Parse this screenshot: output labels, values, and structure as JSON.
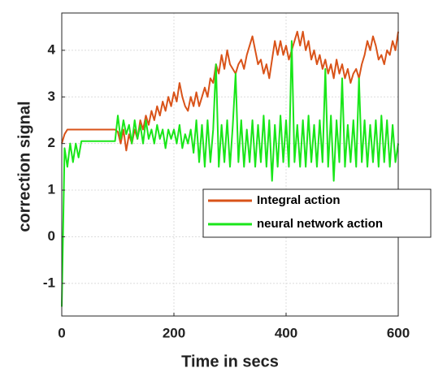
{
  "chart_data": {
    "type": "line",
    "x_label": "Time in secs",
    "y_label": "correction signal",
    "x": [
      0,
      5,
      10,
      15,
      20,
      25,
      30,
      35,
      40,
      45,
      50,
      55,
      60,
      65,
      70,
      75,
      80,
      85,
      90,
      95,
      100,
      105,
      110,
      115,
      120,
      125,
      130,
      135,
      140,
      145,
      150,
      155,
      160,
      165,
      170,
      175,
      180,
      185,
      190,
      195,
      200,
      205,
      210,
      215,
      220,
      225,
      230,
      235,
      240,
      245,
      250,
      255,
      260,
      265,
      270,
      275,
      280,
      285,
      290,
      295,
      300,
      305,
      310,
      315,
      320,
      325,
      330,
      335,
      340,
      345,
      350,
      355,
      360,
      365,
      370,
      375,
      380,
      385,
      390,
      395,
      400,
      405,
      410,
      415,
      420,
      425,
      430,
      435,
      440,
      445,
      450,
      455,
      460,
      465,
      470,
      475,
      480,
      485,
      490,
      495,
      500,
      505,
      510,
      515,
      520,
      525,
      530,
      535,
      540,
      545,
      550,
      555,
      560,
      565,
      570,
      575,
      580,
      585,
      590,
      595,
      600
    ],
    "series": [
      {
        "name": "Integral action",
        "color": "#d95319",
        "values": [
          2.0,
          2.2,
          2.3,
          2.3,
          2.3,
          2.3,
          2.3,
          2.3,
          2.3,
          2.3,
          2.3,
          2.3,
          2.3,
          2.3,
          2.3,
          2.3,
          2.3,
          2.3,
          2.3,
          2.3,
          2.25,
          2.0,
          2.3,
          1.85,
          2.2,
          2.0,
          2.3,
          2.1,
          2.5,
          2.3,
          2.6,
          2.4,
          2.7,
          2.5,
          2.8,
          2.6,
          2.9,
          2.7,
          3.0,
          2.8,
          3.1,
          2.9,
          3.3,
          3.0,
          2.8,
          2.7,
          3.0,
          2.8,
          3.1,
          2.8,
          3.0,
          3.2,
          3.0,
          3.4,
          3.3,
          3.7,
          3.5,
          3.9,
          3.6,
          4.0,
          3.7,
          3.6,
          3.5,
          3.7,
          3.8,
          3.6,
          3.9,
          4.1,
          4.3,
          4.0,
          3.7,
          3.8,
          3.5,
          3.7,
          3.4,
          3.8,
          4.2,
          3.9,
          4.2,
          3.9,
          4.1,
          3.8,
          4.0,
          4.2,
          4.4,
          4.1,
          4.4,
          4.0,
          4.2,
          3.8,
          4.0,
          3.7,
          3.9,
          3.6,
          3.8,
          3.5,
          3.7,
          3.4,
          3.8,
          3.5,
          3.7,
          3.4,
          3.6,
          3.3,
          3.5,
          3.6,
          3.4,
          3.7,
          3.9,
          4.2,
          4.0,
          4.3,
          4.1,
          3.8,
          3.9,
          3.7,
          4.0,
          3.9,
          4.2,
          4.0,
          4.4
        ]
      },
      {
        "name": "neural network action",
        "color": "#19e619",
        "values": [
          -1.5,
          1.9,
          1.5,
          2.0,
          1.6,
          2.0,
          1.7,
          2.05,
          2.05,
          2.05,
          2.05,
          2.05,
          2.05,
          2.05,
          2.05,
          2.05,
          2.05,
          2.05,
          2.05,
          2.05,
          2.6,
          2.1,
          2.5,
          2.2,
          2.4,
          2.0,
          2.5,
          2.1,
          2.4,
          2.0,
          2.5,
          2.1,
          2.3,
          2.0,
          2.4,
          2.1,
          2.3,
          1.9,
          2.3,
          2.1,
          2.3,
          2.0,
          2.4,
          1.9,
          2.2,
          2.0,
          2.3,
          1.8,
          2.5,
          1.6,
          2.4,
          1.5,
          2.5,
          1.6,
          2.3,
          3.7,
          1.5,
          2.4,
          1.6,
          2.5,
          1.5,
          2.4,
          3.5,
          1.6,
          2.5,
          1.5,
          2.3,
          1.6,
          2.5,
          1.5,
          2.4,
          1.6,
          2.6,
          1.5,
          2.5,
          1.2,
          2.4,
          1.5,
          2.6,
          1.6,
          2.5,
          1.5,
          4.2,
          1.6,
          2.4,
          1.5,
          2.5,
          1.5,
          2.6,
          1.6,
          2.4,
          1.5,
          2.5,
          1.6,
          3.6,
          1.5,
          2.6,
          1.2,
          2.5,
          1.6,
          3.4,
          1.5,
          2.4,
          1.6,
          2.5,
          1.5,
          3.4,
          1.6,
          2.5,
          1.5,
          2.4,
          1.6,
          2.5,
          1.5,
          2.6,
          1.6,
          2.5,
          1.5,
          2.4,
          1.6,
          2.0
        ]
      }
    ],
    "xlim": [
      0,
      600
    ],
    "xticks": [
      0,
      200,
      400,
      600
    ],
    "ylim": [
      -1.7,
      4.8
    ],
    "yticks": [
      -1,
      0,
      1,
      2,
      3,
      4
    ],
    "grid": true
  }
}
